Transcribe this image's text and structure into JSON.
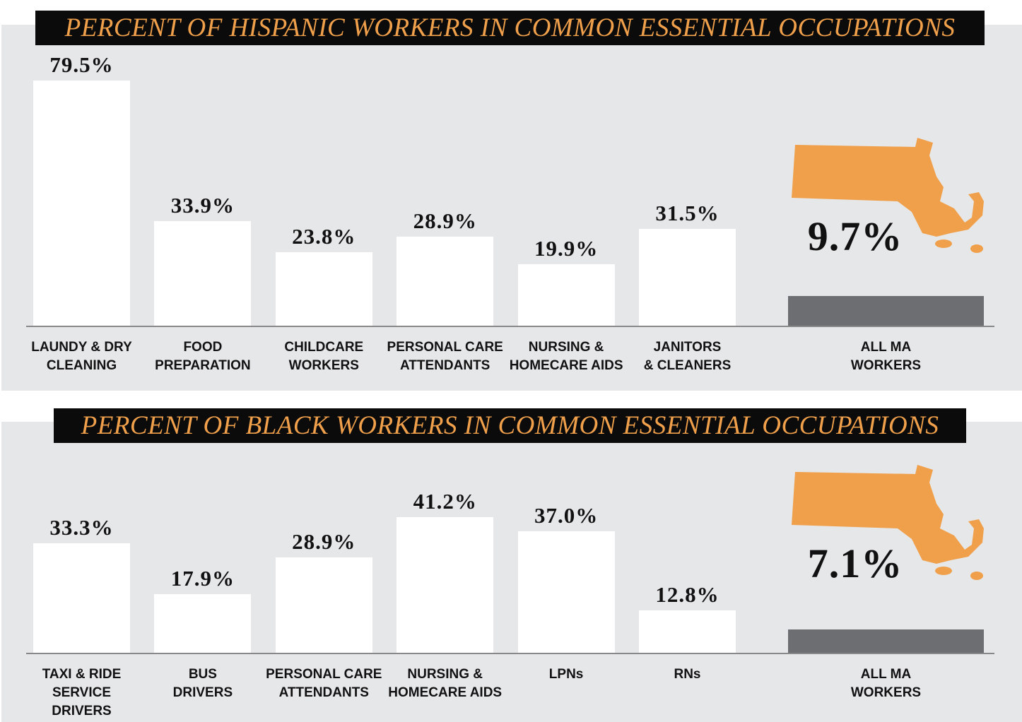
{
  "chart_data": [
    {
      "type": "bar",
      "title": "PERCENT OF HISPANIC WORKERS IN COMMON ESSENTIAL OCCUPATIONS",
      "categories": [
        "LAUNDY & DRY\nCLEANING",
        "FOOD\nPREPARATION",
        "CHILDCARE\nWORKERS",
        "PERSONAL CARE\nATTENDANTS",
        "NURSING &\nHOMECARE AIDS",
        "JANITORS\n& CLEANERS",
        "ALL MA\nWORKERS"
      ],
      "values": [
        79.5,
        33.9,
        23.8,
        28.9,
        19.9,
        31.5,
        9.7
      ],
      "value_labels": [
        "79.5%",
        "33.9%",
        "23.8%",
        "28.9%",
        "19.9%",
        "31.5%",
        "9.7%"
      ],
      "colors": [
        "#ffffff",
        "#ffffff",
        "#ffffff",
        "#ffffff",
        "#ffffff",
        "#ffffff",
        "#6d6e71"
      ]
    },
    {
      "type": "bar",
      "title": "PERCENT OF BLACK WORKERS IN COMMON ESSENTIAL OCCUPATIONS",
      "categories": [
        "TAXI & RIDE\nSERVICE\nDRIVERS",
        "BUS\nDRIVERS",
        "PERSONAL CARE\nATTENDANTS",
        "NURSING &\nHOMECARE AIDS",
        "LPNs",
        "RNs",
        "ALL MA\nWORKERS"
      ],
      "values": [
        33.3,
        17.9,
        28.9,
        41.2,
        37.0,
        12.8,
        7.1
      ],
      "value_labels": [
        "33.3%",
        "17.9%",
        "28.9%",
        "41.2%",
        "37.0%",
        "12.8%",
        "7.1%"
      ],
      "colors": [
        "#ffffff",
        "#ffffff",
        "#ffffff",
        "#ffffff",
        "#ffffff",
        "#ffffff",
        "#6d6e71"
      ]
    }
  ]
}
